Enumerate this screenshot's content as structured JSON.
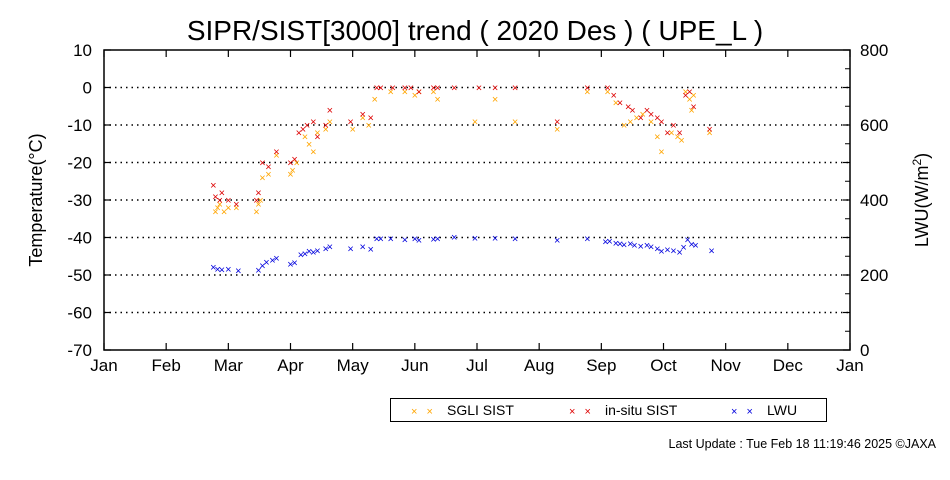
{
  "chart_data": {
    "type": "scatter",
    "title": "SIPR/SIST[3000] trend ( 2020 Des ) ( UPE_L )",
    "ylabel": "Temperature(°C)",
    "y2label_main": "LWU(W/m",
    "y2label_sup": "2",
    "y2label_end": ")",
    "ylim": [
      -70,
      10
    ],
    "y2lim": [
      0,
      800
    ],
    "yticks": [
      "10",
      "0",
      "-10",
      "-20",
      "-30",
      "-40",
      "-50",
      "-60",
      "-70"
    ],
    "y2ticks": [
      "800",
      "600",
      "400",
      "200",
      "0"
    ],
    "xtick_labels": [
      "Jan",
      "Feb",
      "Mar",
      "Apr",
      "May",
      "Jun",
      "Jul",
      "Aug",
      "Sep",
      "Oct",
      "Nov",
      "Dec",
      "Jan"
    ],
    "grid": "horizontal dotted",
    "series": [
      {
        "name": "SGLI SIST",
        "color": "#ffa500",
        "axis": "left",
        "points": [
          [
            "Feb 24",
            -33
          ],
          [
            "Feb 25",
            -32
          ],
          [
            "Feb 26",
            -31
          ],
          [
            "Feb 28",
            -33
          ],
          [
            "Mar 1",
            -32
          ],
          [
            "Mar 5",
            -32
          ],
          [
            "Mar 15",
            -33
          ],
          [
            "Mar 16",
            -31
          ],
          [
            "Mar 17",
            -30
          ],
          [
            "Mar 18",
            -24
          ],
          [
            "Mar 21",
            -23
          ],
          [
            "Mar 25",
            -18
          ],
          [
            "Apr 1",
            -23
          ],
          [
            "Apr 2",
            -22
          ],
          [
            "Apr 4",
            -20
          ],
          [
            "Apr 8",
            -13
          ],
          [
            "Apr 10",
            -15
          ],
          [
            "Apr 12",
            -17
          ],
          [
            "Apr 14",
            -12
          ],
          [
            "Apr 18",
            -11
          ],
          [
            "Apr 20",
            -9
          ],
          [
            "May 1",
            -11
          ],
          [
            "May 6",
            -8
          ],
          [
            "May 9",
            -10
          ],
          [
            "May 12",
            -3
          ],
          [
            "May 20",
            -1
          ],
          [
            "May 27",
            -1
          ],
          [
            "Jun 1",
            -2
          ],
          [
            "Jun 3",
            -1
          ],
          [
            "Jun 10",
            -1
          ],
          [
            "Jun 12",
            -3
          ],
          [
            "Jun 30",
            -9
          ],
          [
            "Jul 10",
            -3
          ],
          [
            "Jul 20",
            -9
          ],
          [
            "Aug 10",
            -11
          ],
          [
            "Aug 25",
            -1
          ],
          [
            "Sep 4",
            -1
          ],
          [
            "Sep 8",
            -4
          ],
          [
            "Sep 12",
            -10
          ],
          [
            "Sep 15",
            -9
          ],
          [
            "Sep 18",
            -8
          ],
          [
            "Sep 21",
            -7
          ],
          [
            "Sep 25",
            -9
          ],
          [
            "Sep 28",
            -13
          ],
          [
            "Sep 30",
            -17
          ],
          [
            "Oct 5",
            -12
          ],
          [
            "Oct 8",
            -13
          ],
          [
            "Oct 10",
            -14
          ],
          [
            "Oct 12",
            -1
          ],
          [
            "Oct 14",
            -3
          ],
          [
            "Oct 15",
            -6
          ],
          [
            "Oct 16",
            -2
          ],
          [
            "Oct 24",
            -12
          ]
        ]
      },
      {
        "name": "in-situ SIST",
        "color": "#dd0000",
        "axis": "left",
        "points": [
          [
            "Feb 23",
            -26
          ],
          [
            "Feb 24",
            -29
          ],
          [
            "Feb 26",
            -30
          ],
          [
            "Feb 27",
            -28
          ],
          [
            "Mar 1",
            -30
          ],
          [
            "Mar 5",
            -31
          ],
          [
            "Mar 15",
            -30
          ],
          [
            "Mar 16",
            -28
          ],
          [
            "Mar 18",
            -20
          ],
          [
            "Mar 21",
            -21
          ],
          [
            "Mar 25",
            -17
          ],
          [
            "Apr 1",
            -20
          ],
          [
            "Apr 3",
            -19
          ],
          [
            "Apr 5",
            -12
          ],
          [
            "Apr 7",
            -11
          ],
          [
            "Apr 9",
            -10
          ],
          [
            "Apr 12",
            -9
          ],
          [
            "Apr 14",
            -13
          ],
          [
            "Apr 18",
            -10
          ],
          [
            "Apr 20",
            -6
          ],
          [
            "Apr 30",
            -9
          ],
          [
            "May 6",
            -7
          ],
          [
            "May 10",
            -8
          ],
          [
            "May 13",
            0
          ],
          [
            "May 15",
            0
          ],
          [
            "May 21",
            0
          ],
          [
            "May 27",
            0
          ],
          [
            "May 30",
            0
          ],
          [
            "Jun 3",
            -1
          ],
          [
            "Jun 10",
            0
          ],
          [
            "Jun 12",
            0
          ],
          [
            "Jun 20",
            0
          ],
          [
            "Jul 2",
            0
          ],
          [
            "Jul 10",
            0
          ],
          [
            "Jul 20",
            0
          ],
          [
            "Aug 10",
            -9
          ],
          [
            "Aug 25",
            0
          ],
          [
            "Sep 4",
            0
          ],
          [
            "Sep 7",
            -2
          ],
          [
            "Sep 10",
            -4
          ],
          [
            "Sep 14",
            -5
          ],
          [
            "Sep 16",
            -6
          ],
          [
            "Sep 20",
            -8
          ],
          [
            "Sep 23",
            -6
          ],
          [
            "Sep 25",
            -7
          ],
          [
            "Sep 28",
            -8
          ],
          [
            "Sep 30",
            -9
          ],
          [
            "Oct 3",
            -12
          ],
          [
            "Oct 6",
            -10
          ],
          [
            "Oct 9",
            -12
          ],
          [
            "Oct 12",
            -2
          ],
          [
            "Oct 14",
            -1
          ],
          [
            "Oct 16",
            -5
          ],
          [
            "Oct 24",
            -11
          ]
        ]
      },
      {
        "name": "LWU",
        "color": "#0000dd",
        "axis": "right",
        "points": [
          [
            "Feb 23",
            221
          ],
          [
            "Feb 25",
            216
          ],
          [
            "Feb 27",
            215
          ],
          [
            "Mar 1",
            216
          ],
          [
            "Mar 6",
            212
          ],
          [
            "Mar 16",
            214
          ],
          [
            "Mar 18",
            225
          ],
          [
            "Mar 20",
            235
          ],
          [
            "Mar 23",
            240
          ],
          [
            "Mar 25",
            245
          ],
          [
            "Apr 1",
            229
          ],
          [
            "Apr 3",
            234
          ],
          [
            "Apr 6",
            255
          ],
          [
            "Apr 8",
            258
          ],
          [
            "Apr 10",
            264
          ],
          [
            "Apr 12",
            261
          ],
          [
            "Apr 14",
            265
          ],
          [
            "Apr 18",
            271
          ],
          [
            "Apr 20",
            276
          ],
          [
            "Apr 30",
            271
          ],
          [
            "May 6",
            276
          ],
          [
            "May 10",
            269
          ],
          [
            "May 13",
            298
          ],
          [
            "May 15",
            297
          ],
          [
            "May 20",
            298
          ],
          [
            "May 27",
            295
          ],
          [
            "Jun 1",
            297
          ],
          [
            "Jun 3",
            294
          ],
          [
            "Jun 10",
            296
          ],
          [
            "Jun 12",
            298
          ],
          [
            "Jun 20",
            302
          ],
          [
            "Jun 30",
            299
          ],
          [
            "Jul 10",
            299
          ],
          [
            "Jul 20",
            298
          ],
          [
            "Aug 10",
            294
          ],
          [
            "Aug 25",
            298
          ],
          [
            "Sep 3",
            290
          ],
          [
            "Sep 5",
            291
          ],
          [
            "Sep 8",
            286
          ],
          [
            "Sep 10",
            284
          ],
          [
            "Sep 12",
            282
          ],
          [
            "Sep 15",
            284
          ],
          [
            "Sep 17",
            280
          ],
          [
            "Sep 20",
            277
          ],
          [
            "Sep 23",
            280
          ],
          [
            "Sep 25",
            276
          ],
          [
            "Sep 28",
            271
          ],
          [
            "Sep 30",
            264
          ],
          [
            "Oct 3",
            268
          ],
          [
            "Oct 6",
            265
          ],
          [
            "Oct 9",
            262
          ],
          [
            "Oct 11",
            275
          ],
          [
            "Oct 13",
            295
          ],
          [
            "Oct 15",
            283
          ],
          [
            "Oct 17",
            280
          ],
          [
            "Oct 25",
            265
          ]
        ]
      }
    ]
  },
  "legend": [
    {
      "label": "SGLI SIST",
      "marker": "× ×",
      "color": "#ffa500"
    },
    {
      "label": "in-situ SIST",
      "marker": "× ×",
      "color": "#dd0000"
    },
    {
      "label": "LWU",
      "marker": "× ×",
      "color": "#0000dd"
    }
  ],
  "footer": "Last Update : Tue Feb 18 11:19:46 2025  ©JAXA"
}
